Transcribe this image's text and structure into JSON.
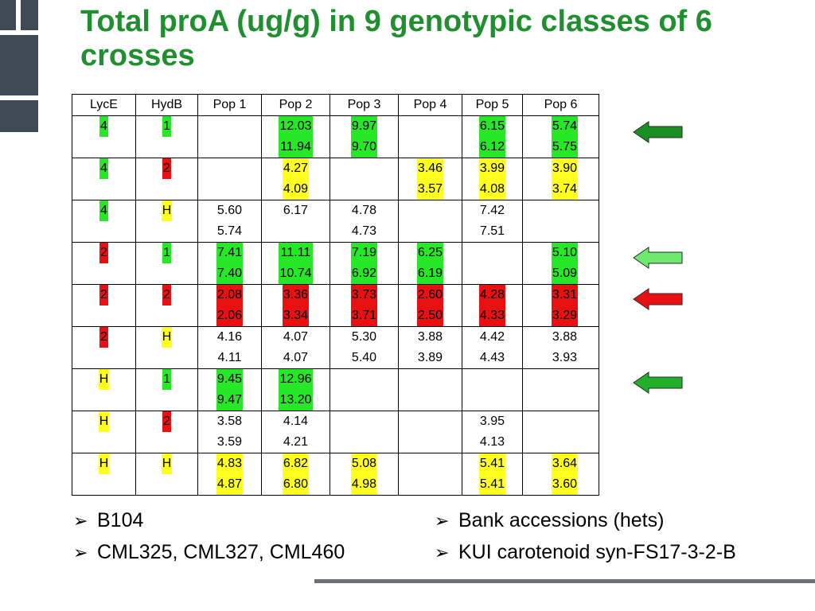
{
  "title": "Total proA (ug/g) in 9 genotypic classes of 6 crosses",
  "table": {
    "headers": [
      "LycE",
      "HydB",
      "Pop 1",
      "Pop 2",
      "Pop 3",
      "Pop 4",
      "Pop 5",
      "Pop 6"
    ],
    "rows": [
      {
        "lyce": {
          "text": "4",
          "color": "green"
        },
        "hydb": {
          "text": "1",
          "color": "green"
        },
        "pops": [
          null,
          {
            "v": [
              "12.03",
              "11.94"
            ],
            "color": "green"
          },
          {
            "v": [
              "9.97",
              "9.70"
            ],
            "color": "green"
          },
          null,
          {
            "v": [
              "6.15",
              "6.12"
            ],
            "color": "green"
          },
          {
            "v": [
              "5.74",
              "5.75"
            ],
            "color": "green"
          }
        ]
      },
      {
        "lyce": {
          "text": "4",
          "color": "green"
        },
        "hydb": {
          "text": "2",
          "color": "red"
        },
        "pops": [
          null,
          {
            "v": [
              "4.27",
              "4.09"
            ],
            "color": "yellow"
          },
          null,
          {
            "v": [
              "3.46",
              "3.57"
            ],
            "color": "yellow"
          },
          {
            "v": [
              "3.99",
              "4.08"
            ],
            "color": "yellow"
          },
          {
            "v": [
              "3.90",
              "3.74"
            ],
            "color": "yellow"
          }
        ]
      },
      {
        "lyce": {
          "text": "4",
          "color": "green"
        },
        "hydb": {
          "text": "H",
          "color": "yellow"
        },
        "pops": [
          {
            "v": [
              "5.60",
              "5.74"
            ],
            "color": ""
          },
          {
            "v": [
              "6.17"
            ],
            "color": ""
          },
          {
            "v": [
              "4.78",
              "4.73"
            ],
            "color": ""
          },
          null,
          {
            "v": [
              "7.42",
              "7.51"
            ],
            "color": ""
          },
          null
        ]
      },
      {
        "lyce": {
          "text": "2",
          "color": "red"
        },
        "hydb": {
          "text": "1",
          "color": "green"
        },
        "pops": [
          {
            "v": [
              "7.41",
              "7.40"
            ],
            "color": "green"
          },
          {
            "v": [
              "11.11",
              "10.74"
            ],
            "color": "green"
          },
          {
            "v": [
              "7.19",
              "6.92"
            ],
            "color": "green"
          },
          {
            "v": [
              "6.25",
              "6.19"
            ],
            "color": "green"
          },
          null,
          {
            "v": [
              "5.10",
              "5.09"
            ],
            "color": "green"
          }
        ]
      },
      {
        "lyce": {
          "text": "2",
          "color": "red"
        },
        "hydb": {
          "text": "2",
          "color": "red"
        },
        "pops": [
          {
            "v": [
              "2.08",
              "2.06"
            ],
            "color": "red"
          },
          {
            "v": [
              "3.36",
              "3.34"
            ],
            "color": "red"
          },
          {
            "v": [
              "3.73",
              "3.71"
            ],
            "color": "red"
          },
          {
            "v": [
              "2.60",
              "2.50"
            ],
            "color": "red"
          },
          {
            "v": [
              "4.28",
              "4.33"
            ],
            "color": "red"
          },
          {
            "v": [
              "3.31",
              "3.29"
            ],
            "color": "red"
          }
        ]
      },
      {
        "lyce": {
          "text": "2",
          "color": "red"
        },
        "hydb": {
          "text": "H",
          "color": "yellow"
        },
        "pops": [
          {
            "v": [
              "4.16",
              "4.11"
            ],
            "color": ""
          },
          {
            "v": [
              "4.07",
              "4.07"
            ],
            "color": ""
          },
          {
            "v": [
              "5.30",
              "5.40"
            ],
            "color": ""
          },
          {
            "v": [
              "3.88",
              "3.89"
            ],
            "color": ""
          },
          {
            "v": [
              "4.42",
              "4.43"
            ],
            "color": ""
          },
          {
            "v": [
              "3.88",
              "3.93"
            ],
            "color": ""
          }
        ]
      },
      {
        "lyce": {
          "text": "H",
          "color": "yellow"
        },
        "hydb": {
          "text": "1",
          "color": "green"
        },
        "pops": [
          {
            "v": [
              "9.45",
              "9.47"
            ],
            "color": "green"
          },
          {
            "v": [
              "12.96",
              "13.20"
            ],
            "color": "green"
          },
          null,
          null,
          null,
          null
        ]
      },
      {
        "lyce": {
          "text": "H",
          "color": "yellow"
        },
        "hydb": {
          "text": "2",
          "color": "red"
        },
        "pops": [
          {
            "v": [
              "3.58",
              "3.59"
            ],
            "color": ""
          },
          {
            "v": [
              "4.14",
              "4.21"
            ],
            "color": ""
          },
          null,
          null,
          {
            "v": [
              "3.95",
              "4.13"
            ],
            "color": ""
          },
          null
        ]
      },
      {
        "lyce": {
          "text": "H",
          "color": "yellow"
        },
        "hydb": {
          "text": "H",
          "color": "yellow"
        },
        "pops": [
          {
            "v": [
              "4.83",
              "4.87"
            ],
            "color": "yellow"
          },
          {
            "v": [
              "6.82",
              "6.80"
            ],
            "color": "yellow"
          },
          {
            "v": [
              "5.08",
              "4.98"
            ],
            "color": "yellow"
          },
          null,
          {
            "v": [
              "5.41",
              "5.41"
            ],
            "color": "yellow"
          },
          {
            "v": [
              "3.64",
              "3.60"
            ],
            "color": "yellow"
          }
        ]
      }
    ]
  },
  "arrows": [
    {
      "row": 1,
      "color": "#1a8f24"
    },
    {
      "row": 4,
      "color": "#6ee86e"
    },
    {
      "row": 5,
      "color": "#e81010"
    },
    {
      "row": 7,
      "color": "#22b02a"
    }
  ],
  "bullets_left": [
    "B104",
    "CML325, CML327, CML460"
  ],
  "bullets_right": [
    "Bank accessions (hets)",
    "KUI carotenoid syn-FS17-3-2-B"
  ],
  "bullet_marker": "➢",
  "colors": {
    "title": "#1f8f2f",
    "green": "#27e827",
    "yellow": "#ffff20",
    "red": "#e81010"
  }
}
